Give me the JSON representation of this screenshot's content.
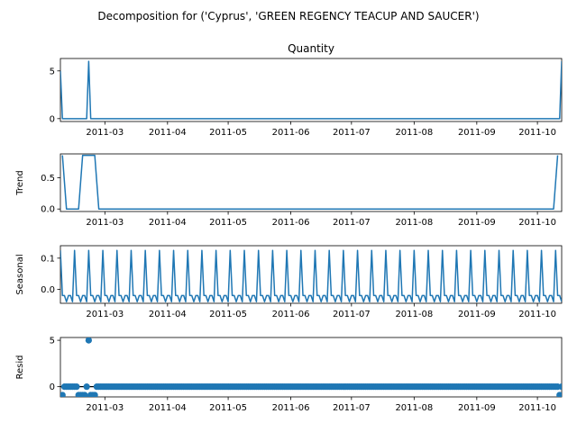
{
  "figure": {
    "suptitle": "Decomposition for ('Cyprus', 'GREEN REGENCY TEACUP AND SAUCER')"
  },
  "colors": {
    "series": "#1f77b4",
    "axes": "#000000",
    "background": "#ffffff"
  },
  "chart_data": [
    {
      "type": "line",
      "panel": "observed",
      "title": "Quantity",
      "ylabel": "",
      "x_range": [
        "2011-02-07",
        "2011-10-13"
      ],
      "ylim": [
        -0.3,
        6.3
      ],
      "y_ticks": [
        0,
        5
      ],
      "x_ticks": [
        "2011-03",
        "2011-04",
        "2011-05",
        "2011-06",
        "2011-07",
        "2011-08",
        "2011-09",
        "2011-10"
      ],
      "grid": false,
      "x": [
        "2011-02-07",
        "2011-02-08",
        "2011-02-20",
        "2011-02-21",
        "2011-02-22",
        "2011-10-12",
        "2011-10-13"
      ],
      "values": [
        5,
        0,
        0,
        6,
        0,
        0,
        6
      ]
    },
    {
      "type": "line",
      "panel": "trend",
      "title": "",
      "ylabel": "Trend",
      "x_range": [
        "2011-02-07",
        "2011-10-13"
      ],
      "ylim": [
        -0.04,
        0.88
      ],
      "y_ticks": [
        0.0,
        0.5
      ],
      "x_ticks": [
        "2011-03",
        "2011-04",
        "2011-05",
        "2011-06",
        "2011-07",
        "2011-08",
        "2011-09",
        "2011-10"
      ],
      "grid": false,
      "x": [
        "2011-02-08",
        "2011-02-10",
        "2011-02-16",
        "2011-02-18",
        "2011-02-24",
        "2011-02-26",
        "2011-10-09",
        "2011-10-11"
      ],
      "values": [
        0.857,
        0.0,
        0.0,
        0.857,
        0.857,
        0.0,
        0.0,
        0.857
      ]
    },
    {
      "type": "line",
      "panel": "seasonal",
      "title": "",
      "ylabel": "Seasonal",
      "x_range": [
        "2011-02-07",
        "2011-10-13"
      ],
      "ylim": [
        -0.045,
        0.14
      ],
      "y_ticks": [
        0.0,
        0.1
      ],
      "x_ticks": [
        "2011-03",
        "2011-04",
        "2011-05",
        "2011-06",
        "2011-07",
        "2011-08",
        "2011-09",
        "2011-10"
      ],
      "grid": false,
      "period_days": 7,
      "pattern_start": "2011-02-07",
      "weekly_pattern": [
        0.125,
        -0.02,
        -0.02,
        -0.04,
        -0.02,
        -0.02,
        -0.04
      ]
    },
    {
      "type": "scatter",
      "panel": "resid",
      "title": "",
      "ylabel": "Resid",
      "x_range": [
        "2011-02-07",
        "2011-10-13"
      ],
      "ylim": [
        -1.1,
        5.3
      ],
      "y_ticks": [
        0,
        5
      ],
      "x_ticks": [
        "2011-03",
        "2011-04",
        "2011-05",
        "2011-06",
        "2011-07",
        "2011-08",
        "2011-09",
        "2011-10"
      ],
      "grid": false,
      "zero_line": true,
      "baseline_value": 0.0,
      "point_spacing_days": 1,
      "points": [
        {
          "x": "2011-02-08",
          "y": -0.9
        },
        {
          "x": "2011-02-16",
          "y": -0.9
        },
        {
          "x": "2011-02-17",
          "y": -0.9
        },
        {
          "x": "2011-02-18",
          "y": -0.9
        },
        {
          "x": "2011-02-19",
          "y": -0.9
        },
        {
          "x": "2011-02-21",
          "y": 5.0
        },
        {
          "x": "2011-02-22",
          "y": -0.9
        },
        {
          "x": "2011-02-23",
          "y": -0.9
        },
        {
          "x": "2011-02-24",
          "y": -0.9
        },
        {
          "x": "2011-10-12",
          "y": -0.9
        }
      ]
    }
  ]
}
